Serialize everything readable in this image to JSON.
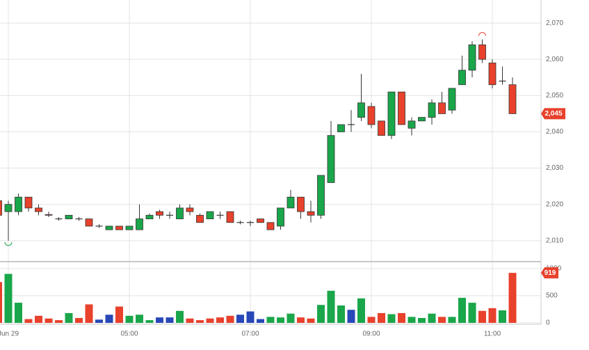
{
  "chart_data": {
    "type": "candlestick",
    "open": [
      2021,
      2018,
      2018,
      2022,
      2019,
      2017.2,
      2016,
      2016,
      2016,
      2016,
      2014,
      2013,
      2014,
      2013,
      2013,
      2016,
      2018,
      2017,
      2016,
      2019,
      2017,
      2016,
      2017,
      2018,
      2015,
      2015,
      2016,
      2015,
      2014,
      2019,
      2022,
      2018,
      2017,
      2026,
      2040,
      2042,
      2044,
      2047,
      2043,
      2039,
      2051,
      2041,
      2043,
      2044,
      2048,
      2046,
      2053,
      2057,
      2064,
      2059,
      2054,
      2053
    ],
    "high": [
      2021.5,
      2021,
      2023,
      2022,
      2020,
      2018,
      2016.5,
      2017,
      2016.5,
      2016,
      2014.5,
      2014,
      2014,
      2014,
      2020,
      2017.5,
      2018.5,
      2018,
      2020,
      2020,
      2017.5,
      2018,
      2018,
      2018,
      2015.5,
      2015.5,
      2016,
      2015,
      2019,
      2024,
      2022,
      2021,
      2028,
      2043,
      2042,
      2046,
      2056,
      2048,
      2043,
      2051,
      2051,
      2044,
      2044,
      2049,
      2051,
      2052,
      2061,
      2065,
      2065.5,
      2060,
      2058,
      2055
    ],
    "low": [
      2016,
      2010,
      2017,
      2018,
      2017,
      2016.5,
      2015.5,
      2016,
      2015.5,
      2014,
      2013.5,
      2013,
      2013,
      2013,
      2013,
      2016,
      2016,
      2016,
      2016,
      2017,
      2015,
      2016,
      2016,
      2015,
      2014.5,
      2014,
      2015,
      2013,
      2013,
      2019,
      2016,
      2015,
      2016,
      2026,
      2040,
      2040,
      2043,
      2041,
      2039,
      2038,
      2042,
      2039,
      2043,
      2042,
      2045,
      2045,
      2053,
      2055,
      2059,
      2052,
      2053,
      2045
    ],
    "close": [
      2017,
      2020,
      2022,
      2019,
      2018,
      2017,
      2016,
      2017,
      2016,
      2014,
      2014,
      2014,
      2013,
      2014,
      2016,
      2017,
      2017,
      2017,
      2019,
      2018,
      2015,
      2018,
      2017,
      2015,
      2015,
      2015,
      2015,
      2013,
      2019,
      2022,
      2018,
      2017,
      2028,
      2039,
      2042,
      2042,
      2048,
      2042,
      2039,
      2051,
      2042,
      2043,
      2044,
      2048,
      2045,
      2052,
      2057,
      2064,
      2060,
      2053,
      2054,
      2045
    ],
    "up_color": "#1aa64a",
    "down_color": "#e8412c",
    "flat_color": "#333333",
    "last_label": "2,045",
    "ylim": [
      2004.4,
      2075.4
    ],
    "yticks": [
      {
        "value": 2010,
        "label": "2,010"
      },
      {
        "value": 2020,
        "label": "2,020"
      },
      {
        "value": 2030,
        "label": "2,030"
      },
      {
        "value": 2040,
        "label": "2,040"
      },
      {
        "value": 2050,
        "label": "2,050"
      },
      {
        "value": 2060,
        "label": "2,060"
      },
      {
        "value": 2070,
        "label": "2,070"
      }
    ],
    "xticks": [
      {
        "value": 1,
        "label": "Jun 29"
      },
      {
        "value": 13,
        "label": "05:00"
      },
      {
        "value": 25,
        "label": "07:00"
      },
      {
        "value": 37,
        "label": "09:00"
      },
      {
        "value": 49,
        "label": "11:00"
      }
    ],
    "grid": true,
    "volume": {
      "values": [
        750,
        900,
        370,
        70,
        130,
        80,
        50,
        180,
        90,
        340,
        60,
        150,
        300,
        130,
        150,
        50,
        100,
        100,
        220,
        80,
        50,
        80,
        100,
        130,
        150,
        210,
        70,
        110,
        100,
        170,
        100,
        80,
        330,
        590,
        320,
        240,
        450,
        110,
        180,
        160,
        180,
        110,
        90,
        170,
        110,
        110,
        460,
        370,
        220,
        270,
        230,
        919
      ],
      "colors": [
        "#e8412c",
        "#1aa64a",
        "#1aa64a",
        "#e8412c",
        "#e8412c",
        "#e8412c",
        "#e8412c",
        "#1aa64a",
        "#e8412c",
        "#e8412c",
        "#2848b8",
        "#2848b8",
        "#e8412c",
        "#1aa64a",
        "#1aa64a",
        "#1aa64a",
        "#2848b8",
        "#2848b8",
        "#1aa64a",
        "#e8412c",
        "#e8412c",
        "#e8412c",
        "#e8412c",
        "#e8412c",
        "#2848b8",
        "#2848b8",
        "#2848b8",
        "#1aa64a",
        "#1aa64a",
        "#1aa64a",
        "#e8412c",
        "#e8412c",
        "#1aa64a",
        "#1aa64a",
        "#1aa64a",
        "#2848b8",
        "#1aa64a",
        "#e8412c",
        "#e8412c",
        "#1aa64a",
        "#e8412c",
        "#1aa64a",
        "#1aa64a",
        "#1aa64a",
        "#e8412c",
        "#1aa64a",
        "#1aa64a",
        "#1aa64a",
        "#e8412c",
        "#e8412c",
        "#1aa64a",
        "#e8412c"
      ],
      "ylim": [
        0,
        1100
      ],
      "yticks": [
        0,
        500,
        1000
      ]
    }
  }
}
